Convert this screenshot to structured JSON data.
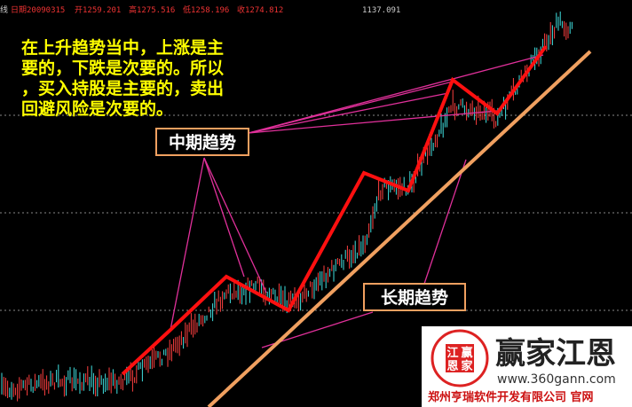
{
  "header": {
    "edge": "线",
    "date": "日期20090315",
    "open": "开1259.201",
    "high": "高1275.516",
    "low": "低1258.196",
    "close": "收1274.812",
    "top_price": "1137.091"
  },
  "note": [
    "在上升趋势当中，上涨是主",
    "要的，下跌是次要的。所以",
    "，买入持股是主要的，卖出",
    "回避风险是次要的。"
  ],
  "labels": {
    "mid_trend": "中期趋势",
    "long_trend": "长期趋势"
  },
  "watermark": {
    "seal": [
      "江",
      "赢",
      "恩",
      "家"
    ],
    "brand": "赢家江恩",
    "url": "www.360gann.com",
    "company": "郑州亨瑞软件开发有限公司 官网"
  }
}
